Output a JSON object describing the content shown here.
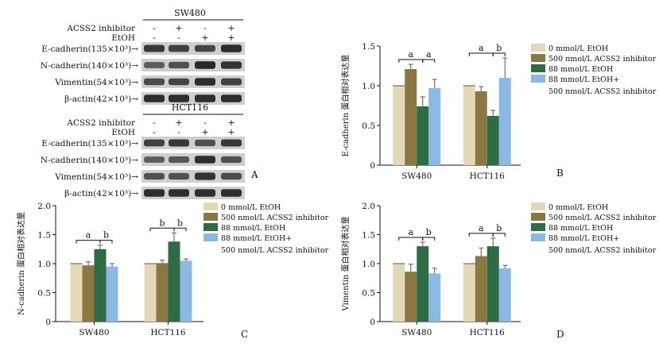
{
  "colors": {
    "c0": "#e4d9b7",
    "c1": "#8b7741",
    "c2": "#2f6b45",
    "c3": "#8bb9e3",
    "blot_band": "#1c1c1c",
    "blot_bg": "#cfcfcf"
  },
  "blot": {
    "panel_label": "A",
    "sections": [
      {
        "cell_line": "SW480",
        "row_labels": [
          "ACSS2 inhibitor",
          "EtOH"
        ],
        "conditions": [
          [
            "-",
            "+",
            "-",
            "+"
          ],
          [
            "-",
            "-",
            "+",
            "+"
          ]
        ],
        "proteins": [
          "E-cadherin(135×10³)→",
          "N-cadherin(140×10³)→",
          "Vimentin(54×10³)→",
          "β-actin(42×10³)→"
        ]
      },
      {
        "cell_line": "HCT116",
        "row_labels": [
          "ACSS2 inhibitor",
          "EtOH"
        ],
        "conditions": [
          [
            "-",
            "+",
            "-",
            "+"
          ],
          [
            "-",
            "-",
            "+",
            "+"
          ]
        ],
        "proteins": [
          "E-cadherin(135×10³)→",
          "N-cadherin(140×10³)→",
          "Vimentin(54×10³)→",
          "β-actin(42×10³)→"
        ]
      }
    ]
  },
  "chart_data": [
    {
      "panel": "B",
      "type": "bar",
      "ylabel": "E-cadherin 蛋白相对表达量",
      "ylim": [
        0,
        1.5
      ],
      "yticks": [
        "0",
        "0.5",
        "1.0",
        "1.5"
      ],
      "categories": [
        "SW480",
        "HCT116"
      ],
      "series": [
        {
          "name": "0 mmol/L EtOH",
          "values": [
            1.0,
            1.0
          ],
          "errors": [
            0,
            0
          ]
        },
        {
          "name": "500 nmol/L ACSS2 inhibitor",
          "values": [
            1.21,
            0.93
          ],
          "errors": [
            0.06,
            0.06
          ]
        },
        {
          "name": "88 mmol/L EtOH",
          "values": [
            0.74,
            0.62
          ],
          "errors": [
            0.12,
            0.07
          ]
        },
        {
          "name": "88 mmol/L EtOH+\n500 nmol/L ACSS2 inhibitor",
          "values": [
            0.97,
            1.1
          ],
          "errors": [
            0.11,
            0.25
          ]
        }
      ],
      "annotations": [
        {
          "category": "SW480",
          "labels": [
            "a",
            "a"
          ]
        },
        {
          "category": "HCT116",
          "labels": [
            "a",
            "b"
          ]
        }
      ],
      "legend": "right"
    },
    {
      "panel": "C",
      "type": "bar",
      "ylabel": "N-cadherin 蛋白相对表达量",
      "ylim": [
        0,
        2.0
      ],
      "yticks": [
        "0",
        "0.5",
        "1.0",
        "1.5",
        "2.0"
      ],
      "categories": [
        "SW480",
        "HCT116"
      ],
      "series": [
        {
          "name": "0 mmol/L EtOH",
          "values": [
            1.0,
            1.0
          ],
          "errors": [
            0,
            0
          ]
        },
        {
          "name": "500 nmol/L ACSS2 inhibitor",
          "values": [
            0.97,
            1.01
          ],
          "errors": [
            0.06,
            0.05
          ]
        },
        {
          "name": "88 mmol/L EtOH",
          "values": [
            1.25,
            1.38
          ],
          "errors": [
            0.07,
            0.15
          ]
        },
        {
          "name": "88 mmol/L EtOH+\n500 nmol/L ACSS2 inhibitor",
          "values": [
            0.95,
            1.05
          ],
          "errors": [
            0.05,
            0.03
          ]
        }
      ],
      "annotations": [
        {
          "category": "SW480",
          "labels": [
            "a",
            "b"
          ]
        },
        {
          "category": "HCT116",
          "labels": [
            "b",
            "b"
          ]
        }
      ],
      "legend": "right"
    },
    {
      "panel": "D",
      "type": "bar",
      "ylabel": "Vimentin 蛋白相对表达量",
      "ylim": [
        0,
        2.0
      ],
      "yticks": [
        "0",
        "0.5",
        "1.0",
        "1.5",
        "2.0"
      ],
      "categories": [
        "SW480",
        "HCT116"
      ],
      "series": [
        {
          "name": "0 mmol/L EtOH",
          "values": [
            1.0,
            1.0
          ],
          "errors": [
            0,
            0
          ]
        },
        {
          "name": "500 nmol/L ACSS2 inhibitor",
          "values": [
            0.86,
            1.13
          ],
          "errors": [
            0.13,
            0.14
          ]
        },
        {
          "name": "88 mmol/L EtOH",
          "values": [
            1.3,
            1.3
          ],
          "errors": [
            0.07,
            0.14
          ]
        },
        {
          "name": "88 mmol/L EtOH+\n500 nmol/L ACSS2 inhibitor",
          "values": [
            0.83,
            0.92
          ],
          "errors": [
            0.09,
            0.05
          ]
        }
      ],
      "annotations": [
        {
          "category": "SW480",
          "labels": [
            "a",
            "b"
          ]
        },
        {
          "category": "HCT116",
          "labels": [
            "a",
            "b"
          ]
        }
      ],
      "legend": "right"
    }
  ]
}
